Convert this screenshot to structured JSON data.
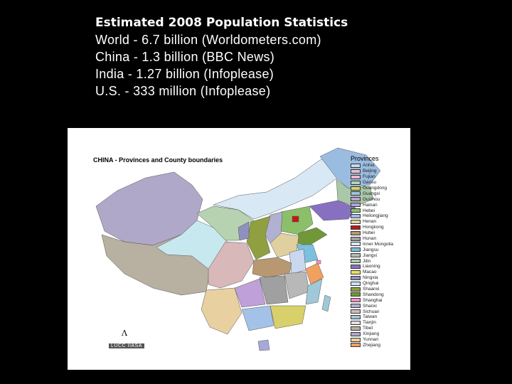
{
  "stats": {
    "title": "Estimated 2008 Population Statistics",
    "lines": [
      "World - 6.7 billion (Worldometers.com)",
      "China - 1.3 billion (BBC News)",
      "India - 1.27 billion (Infoplease)",
      "U.S. - 333 million (Infoplease)"
    ]
  },
  "map": {
    "title": "CHINA - Provinces and County boundaries",
    "legend_title": "Provinces",
    "credit": "LUCC IIASA",
    "north_symbol": "north-arrow-icon",
    "provinces": [
      {
        "name": "Anhui",
        "color": "#c9d8ee"
      },
      {
        "name": "Beijing",
        "color": "#e8c0c0"
      },
      {
        "name": "Fujian",
        "color": "#f0b4d0"
      },
      {
        "name": "Gansu",
        "color": "#b7d2b0"
      },
      {
        "name": "Guangdong",
        "color": "#d8d06a"
      },
      {
        "name": "Guangxi",
        "color": "#a4c2e8"
      },
      {
        "name": "Guizhou",
        "color": "#c0a0d8"
      },
      {
        "name": "Hainan",
        "color": "#a8a8d8"
      },
      {
        "name": "Hebei",
        "color": "#8cbf6a"
      },
      {
        "name": "Heilongjiang",
        "color": "#9abce0"
      },
      {
        "name": "Henan",
        "color": "#e0d0a0"
      },
      {
        "name": "Hongkong",
        "color": "#c01818"
      },
      {
        "name": "Hubei",
        "color": "#b89870"
      },
      {
        "name": "Hunan",
        "color": "#a0a0a0"
      },
      {
        "name": "Inner Mongolia",
        "color": "#d8e8f4"
      },
      {
        "name": "Jiangsu",
        "color": "#7cc0e0"
      },
      {
        "name": "Jiangxi",
        "color": "#b8b8b8"
      },
      {
        "name": "Jilin",
        "color": "#a8c8a8"
      },
      {
        "name": "Liaoning",
        "color": "#8870c0"
      },
      {
        "name": "Macao",
        "color": "#e8e060"
      },
      {
        "name": "Ningxia",
        "color": "#9090c0"
      },
      {
        "name": "Qinghai",
        "color": "#c8e8f0"
      },
      {
        "name": "Shaanxi",
        "color": "#90a040"
      },
      {
        "name": "Shandong",
        "color": "#709838"
      },
      {
        "name": "Shanghai",
        "color": "#f090c0"
      },
      {
        "name": "Shanxi",
        "color": "#b0b0d0"
      },
      {
        "name": "Sichuan",
        "color": "#d8b8b8"
      },
      {
        "name": "Taiwan",
        "color": "#a0c8d8"
      },
      {
        "name": "Tianjin",
        "color": "#e0e0e0"
      },
      {
        "name": "Tibet",
        "color": "#b8b0a0"
      },
      {
        "name": "Xinjiang",
        "color": "#b0a8c8"
      },
      {
        "name": "Yunnan",
        "color": "#e8d0a0"
      },
      {
        "name": "Zhejiang",
        "color": "#f0a060"
      }
    ]
  }
}
